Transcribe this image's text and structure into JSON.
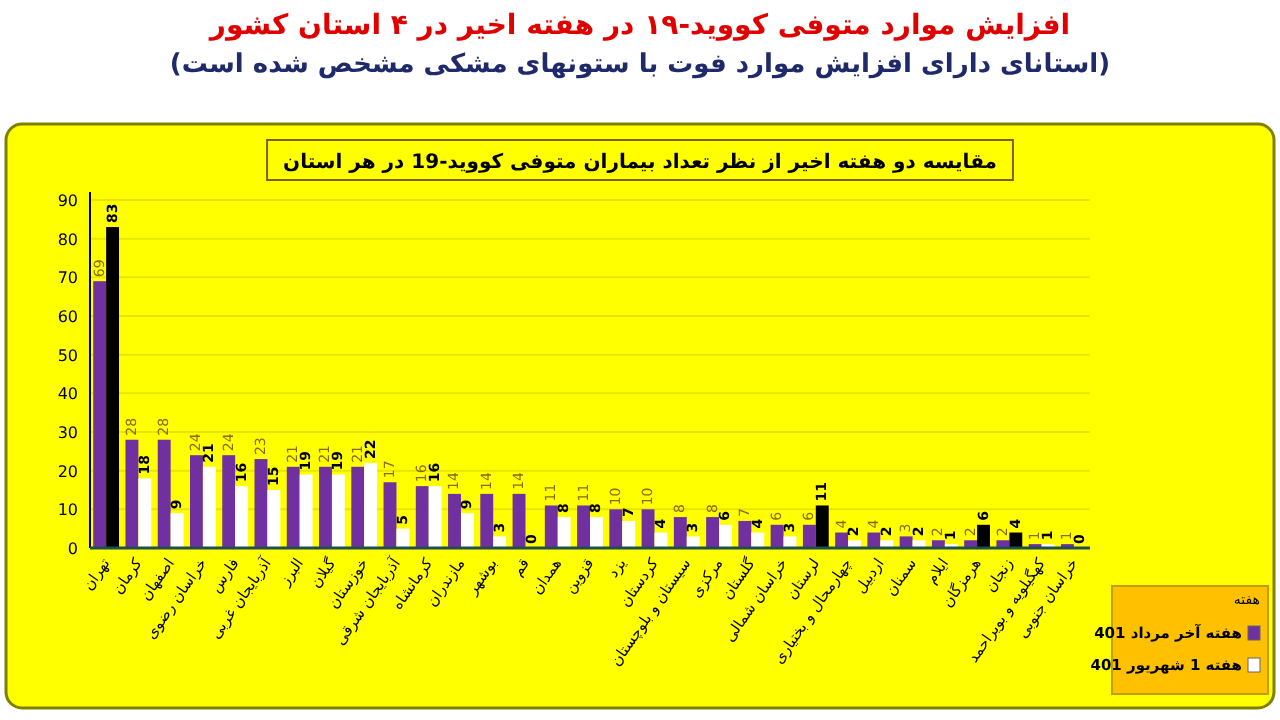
{
  "chart_data": {
    "type": "bar",
    "title": "افزایش موارد متوفی کووید-۱۹ در هفته اخیر در ۴ استان کشور",
    "subtitle": "(استانای دارای افزایش موارد فوت با ستونهای مشکی مشخص شده است)",
    "annotations": [
      "مقایسه دو هفته اخیر از نظر تعداد بیماران متوفی کووید-19 در هر استان"
    ],
    "categories": [
      "تهران",
      "کرمان",
      "اصفهان",
      "خراسان رضوی",
      "فارس",
      "آذربایجان غربی",
      "البرز",
      "گیلان",
      "خوزستان",
      "آذربایجان شرقی",
      "کرمانشاه",
      "مازندران",
      "بوشهر",
      "قم",
      "همدان",
      "قزوین",
      "یزد",
      "کردستان",
      "سیستان و بلوچستان",
      "مرکزی",
      "گلستان",
      "خراسان شمالی",
      "لرستان",
      "چهارمحال و بختیاری",
      "اردبیل",
      "سمنان",
      "ایلام",
      "هرمزگان",
      "زنجان",
      "کهگیلویه و بویراحمد",
      "خراسان جنوبی"
    ],
    "series": [
      {
        "name": "هفته آخر مرداد 401",
        "color": "#7030a0",
        "values": [
          69,
          28,
          28,
          24,
          24,
          23,
          21,
          21,
          21,
          17,
          16,
          14,
          14,
          14,
          11,
          11,
          10,
          10,
          8,
          8,
          7,
          6,
          6,
          4,
          4,
          3,
          2,
          2,
          2,
          1,
          1
        ]
      },
      {
        "name": "هفته 1 شهریور 401",
        "color": "#ffffff",
        "colors": [
          "#000000",
          "#ffffff",
          "#ffffff",
          "#ffffff",
          "#ffffff",
          "#ffffff",
          "#ffffff",
          "#ffffff",
          "#ffffff",
          "#ffffff",
          "#ffffff",
          "#ffffff",
          "#ffffff",
          "#ffffff",
          "#ffffff",
          "#ffffff",
          "#ffffff",
          "#ffffff",
          "#ffffff",
          "#ffffff",
          "#ffffff",
          "#ffffff",
          "#000000",
          "#ffffff",
          "#ffffff",
          "#ffffff",
          "#ffffff",
          "#000000",
          "#000000",
          "#ffffff",
          "#ffffff"
        ],
        "values": [
          83,
          18,
          9,
          21,
          16,
          15,
          19,
          19,
          22,
          5,
          16,
          9,
          3,
          0,
          8,
          8,
          7,
          4,
          3,
          6,
          4,
          3,
          11,
          2,
          2,
          2,
          1,
          6,
          4,
          1,
          0
        ]
      }
    ],
    "legend_title": "هفته",
    "legend": "right",
    "ylim": [
      0,
      90
    ],
    "yticks": [
      0,
      10,
      20,
      30,
      40,
      50,
      60,
      70,
      80,
      90
    ],
    "grid": "y",
    "data_labels": true
  }
}
